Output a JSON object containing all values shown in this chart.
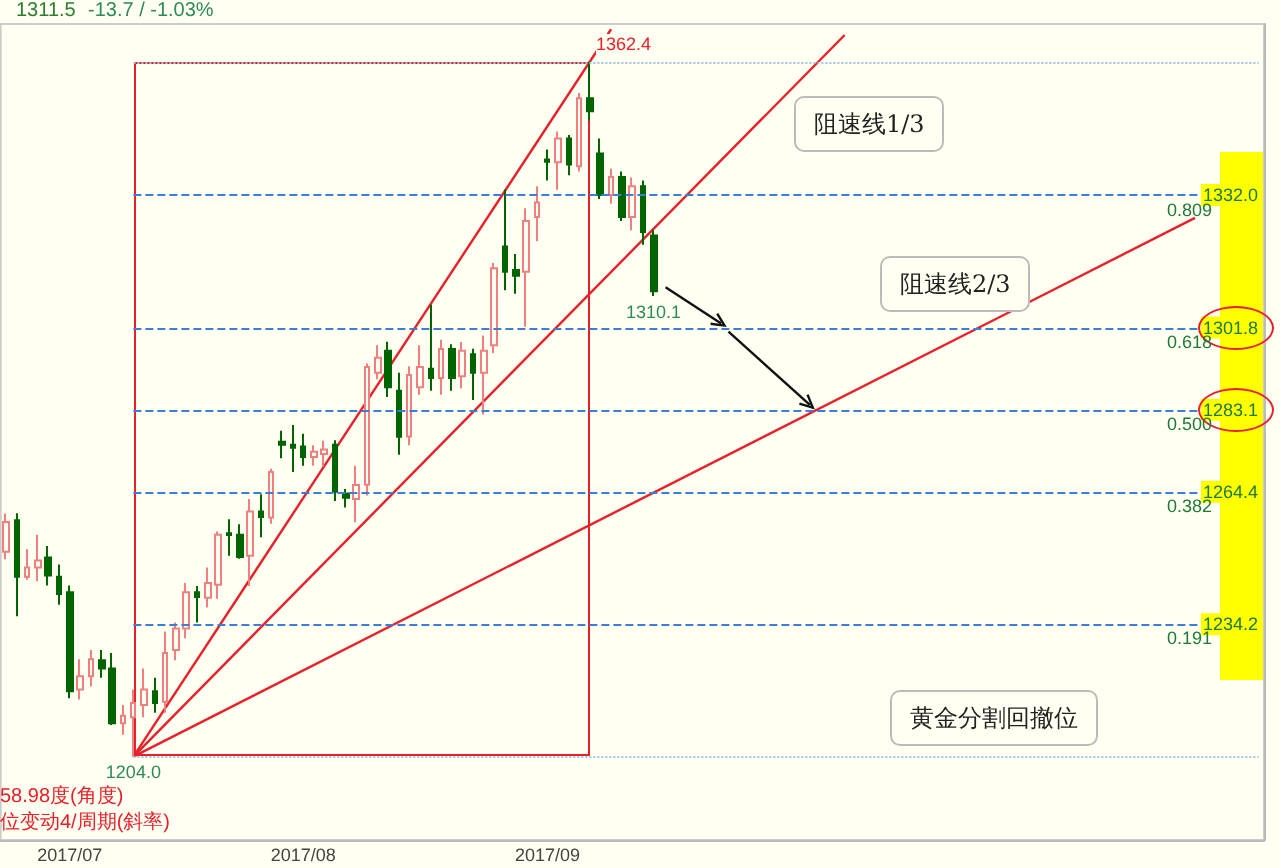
{
  "chart_data": {
    "type": "candlestick",
    "categories": [
      null,
      null,
      null,
      null,
      null,
      null,
      "2017/07",
      null,
      null,
      null,
      null,
      null,
      null,
      null,
      null,
      null,
      null,
      null,
      null,
      null,
      null,
      null,
      null,
      null,
      null,
      null,
      null,
      null,
      "2017/08",
      null,
      null,
      null,
      null,
      null,
      null,
      null,
      null,
      null,
      null,
      null,
      null,
      null,
      null,
      null,
      null,
      null,
      null,
      null,
      null,
      null,
      null,
      "2017/09",
      null,
      null,
      null,
      null,
      null,
      null,
      null,
      null,
      null,
      null,
      null,
      null,
      null,
      null,
      null,
      null,
      null,
      null,
      null,
      null,
      null,
      null,
      null,
      null,
      null,
      null,
      null,
      null,
      null,
      null,
      null,
      null,
      null,
      null,
      null,
      null,
      null,
      null,
      null,
      null,
      null,
      null,
      null,
      null,
      null,
      null,
      null,
      null,
      null,
      null,
      null,
      null,
      null,
      null,
      null,
      null,
      null,
      null,
      null,
      null,
      null,
      null,
      null,
      null,
      null,
      null,
      null
    ],
    "ohlc": [
      [
        1250.7,
        1259.4,
        1249.0,
        1257.5
      ],
      [
        1257.9,
        1259.5,
        1236.0,
        1245.0
      ],
      [
        1245.0,
        1251.3,
        1244.3,
        1247.1
      ],
      [
        1247.1,
        1254.6,
        1244.0,
        1248.7
      ],
      [
        1249.4,
        1252.0,
        1243.0,
        1245.3
      ],
      [
        1245.0,
        1247.8,
        1238.6,
        1241.1
      ],
      [
        1241.5,
        1243.0,
        1217.3,
        1218.9
      ],
      [
        1219.3,
        1226.2,
        1217.0,
        1222.3
      ],
      [
        1222.3,
        1228.3,
        1220.0,
        1226.2
      ],
      [
        1226.0,
        1228.3,
        1222.0,
        1224.1
      ],
      [
        1224.1,
        1227.6,
        1211.2,
        1211.6
      ],
      [
        1211.6,
        1215.8,
        1209.0,
        1213.3
      ],
      [
        1213.0,
        1219.3,
        1204.0,
        1216.2
      ],
      [
        1215.8,
        1224.1,
        1213.0,
        1219.3
      ],
      [
        1218.9,
        1222.0,
        1214.0,
        1216.2
      ],
      [
        1216.5,
        1232.5,
        1214.0,
        1227.6
      ],
      [
        1228.3,
        1234.6,
        1226.0,
        1233.2
      ],
      [
        1233.2,
        1243.6,
        1231.0,
        1241.5
      ],
      [
        1241.5,
        1242.9,
        1234.6,
        1240.4
      ],
      [
        1240.2,
        1247.1,
        1238.0,
        1243.6
      ],
      [
        1243.2,
        1255.3,
        1240.0,
        1254.6
      ],
      [
        1254.9,
        1258.1,
        1249.8,
        1254.5
      ],
      [
        1254.6,
        1257.0,
        1249.1,
        1249.5
      ],
      [
        1249.8,
        1262.7,
        1242.9,
        1259.9
      ],
      [
        1259.9,
        1263.8,
        1254.0,
        1258.6
      ],
      [
        1258.5,
        1269.6,
        1257.1,
        1268.9
      ],
      [
        1275.8,
        1278.3,
        1272.0,
        1275.1
      ],
      [
        1275.1,
        1279.6,
        1268.9,
        1274.4
      ],
      [
        1274.7,
        1277.6,
        1270.3,
        1272.3
      ],
      [
        1272.3,
        1275.0,
        1270.3,
        1273.5
      ],
      [
        1273.0,
        1276.0,
        1270.0,
        1274.0
      ],
      [
        1275.1,
        1276.1,
        1262.3,
        1264.4
      ],
      [
        1264.0,
        1265.0,
        1260.8,
        1263.0
      ],
      [
        1262.7,
        1270.3,
        1257.4,
        1265.9
      ],
      [
        1266.0,
        1293.6,
        1263.5,
        1292.8
      ],
      [
        1291.5,
        1297.8,
        1290.0,
        1294.9
      ],
      [
        1296.5,
        1298.6,
        1286.0,
        1288.2
      ],
      [
        1287.4,
        1291.5,
        1272.8,
        1276.9
      ],
      [
        1277.0,
        1293.0,
        1275.0,
        1291.0
      ],
      [
        1288.2,
        1297.8,
        1286.5,
        1292.8
      ],
      [
        1292.4,
        1307.0,
        1287.4,
        1290.3
      ],
      [
        1290.3,
        1299.0,
        1286.5,
        1296.9
      ],
      [
        1296.9,
        1298.0,
        1287.4,
        1290.3
      ],
      [
        1290.7,
        1298.5,
        1288.0,
        1296.5
      ],
      [
        1295.7,
        1297.0,
        1285.3,
        1291.5
      ],
      [
        1291.5,
        1300.0,
        1282.0,
        1296.5
      ],
      [
        1297.8,
        1316.5,
        1296.0,
        1315.3
      ],
      [
        1320.3,
        1333.2,
        1310.3,
        1314.5
      ],
      [
        1314.9,
        1318.6,
        1309.5,
        1313.6
      ],
      [
        1314.5,
        1329.0,
        1302.0,
        1326.1
      ],
      [
        1327.0,
        1334.0,
        1321.5,
        1330.3
      ],
      [
        1340.1,
        1342.4,
        1335.3,
        1339.6
      ],
      [
        1339.5,
        1346.5,
        1333.2,
        1344.9
      ],
      [
        1344.9,
        1345.7,
        1336.5,
        1339.0
      ],
      [
        1338.6,
        1355.3,
        1337.4,
        1354.1
      ],
      [
        1354.1,
        1362.4,
        1349.0,
        1351.1
      ],
      [
        1341.5,
        1344.9,
        1331.1,
        1332.0
      ],
      [
        1332.0,
        1338.0,
        1330.0,
        1336.1
      ],
      [
        1336.1,
        1337.4,
        1326.1,
        1327.0
      ],
      [
        1327.0,
        1336.0,
        1324.0,
        1334.0
      ],
      [
        1334.0,
        1335.3,
        1320.7,
        1323.6
      ],
      [
        1322.8,
        1324.0,
        1309.0,
        1310.1
      ],
      null,
      null,
      null,
      null,
      null,
      null,
      null,
      null,
      null,
      null,
      null,
      null,
      null,
      null,
      null,
      null,
      null,
      null,
      null,
      null,
      null,
      null,
      null,
      null,
      null,
      null,
      null,
      null,
      null,
      null,
      null,
      null,
      null,
      null,
      null,
      null,
      null,
      null,
      null,
      null,
      null,
      null,
      null,
      null,
      null,
      null,
      null,
      null,
      null,
      null,
      null,
      null,
      null,
      null,
      null,
      null,
      null
    ],
    "series": [
      {
        "type": "line",
        "color": "#e8202a",
        "values": [
          null,
          null,
          null,
          null,
          null,
          null,
          null,
          null,
          null,
          null,
          null,
          null,
          1204,
          null,
          null,
          null,
          null,
          null,
          null,
          null,
          null,
          null,
          null,
          null,
          null,
          null,
          null,
          null,
          null,
          null,
          null,
          null,
          null,
          null,
          null,
          null,
          null,
          null,
          null,
          null,
          null,
          null,
          null,
          null,
          null,
          null,
          null,
          null,
          null,
          null,
          null,
          null,
          null,
          null,
          null,
          null,
          null,
          1369.8,
          null,
          null,
          null,
          null,
          null,
          null,
          null,
          null,
          null,
          null,
          null,
          null,
          null,
          null,
          null,
          null,
          null,
          null,
          null,
          null,
          null,
          null,
          null,
          null,
          null,
          null,
          null,
          null,
          null,
          null,
          null,
          null,
          null,
          null,
          null,
          null,
          null,
          null,
          null,
          null,
          null,
          null,
          null,
          null,
          null,
          null,
          null,
          null,
          null,
          null,
          null,
          null,
          null,
          null,
          null,
          null,
          null,
          null,
          null,
          null,
          null
        ]
      },
      {
        "type": "line",
        "color": "#e8202a",
        "values": [
          null,
          null,
          null,
          null,
          null,
          null,
          null,
          null,
          null,
          null,
          null,
          null,
          1204,
          null,
          null,
          null,
          null,
          null,
          null,
          null,
          null,
          null,
          null,
          null,
          null,
          null,
          null,
          null,
          null,
          null,
          null,
          null,
          null,
          null,
          null,
          null,
          null,
          null,
          null,
          null,
          null,
          null,
          null,
          null,
          null,
          null,
          null,
          null,
          null,
          null,
          null,
          null,
          null,
          null,
          null,
          null,
          null,
          null,
          null,
          null,
          null,
          null,
          null,
          null,
          null,
          null,
          null,
          null,
          null,
          null,
          null,
          null,
          null,
          null,
          null,
          null,
          null,
          null,
          null,
          1368.5,
          null,
          null,
          null,
          null,
          null,
          null,
          null,
          null,
          null,
          null,
          null,
          null,
          null,
          null,
          null,
          null,
          null,
          null,
          null,
          null,
          null,
          null,
          null,
          null,
          null,
          null,
          null,
          null,
          null,
          null,
          null,
          null,
          null,
          null,
          null,
          null,
          null,
          null,
          null
        ]
      },
      {
        "type": "line",
        "color": "#e8202a",
        "values": [
          null,
          null,
          null,
          null,
          null,
          null,
          null,
          null,
          null,
          null,
          null,
          null,
          1204,
          null,
          null,
          null,
          null,
          null,
          null,
          null,
          null,
          null,
          null,
          null,
          null,
          null,
          null,
          null,
          null,
          null,
          null,
          null,
          null,
          null,
          null,
          null,
          null,
          null,
          null,
          null,
          null,
          null,
          null,
          null,
          null,
          null,
          null,
          null,
          null,
          null,
          null,
          null,
          null,
          null,
          null,
          null,
          null,
          null,
          null,
          null,
          null,
          null,
          null,
          null,
          null,
          null,
          null,
          null,
          null,
          null,
          null,
          null,
          null,
          null,
          null,
          null,
          null,
          null,
          null,
          null,
          null,
          null,
          null,
          null,
          null,
          null,
          null,
          null,
          null,
          null,
          null,
          null,
          null,
          null,
          null,
          null,
          null,
          null,
          null,
          null,
          null,
          null,
          null,
          null,
          null,
          null,
          null,
          null,
          null,
          null,
          null,
          null,
          1326.8,
          null,
          null,
          null,
          null,
          null,
          null
        ]
      }
    ],
    "ylim": [
      1185,
      1371
    ],
    "yticks": [
      1234.2,
      1264.4,
      1283.1,
      1301.8,
      {
        "value": 1332,
        "label": "1332.0"
      }
    ],
    "ref_lines": [
      {
        "axis": "y",
        "value": 1362.4,
        "color": "#9ec5e8",
        "line_style": "dotted"
      },
      {
        "axis": "y",
        "value": 1204.0,
        "color": "#9ec5e8",
        "line_style": "dotted"
      },
      {
        "axis": "y",
        "value": 1332.0,
        "color": "#3a7fd5",
        "line_style": "dashed"
      },
      {
        "axis": "y",
        "value": 1301.8,
        "color": "#3a7fd5",
        "line_style": "dashed"
      },
      {
        "axis": "y",
        "value": 1283.1,
        "color": "#3a7fd5",
        "line_style": "dashed"
      },
      {
        "axis": "y",
        "value": 1264.4,
        "color": "#3a7fd5",
        "line_style": "dashed"
      },
      {
        "axis": "y",
        "value": 1234.2,
        "color": "#3a7fd5",
        "line_style": "dashed"
      }
    ],
    "annotations": [
      "1311.5",
      "-13.7 / -1.03%",
      "58.98度(角度)",
      "位变动4/周期(斜率)",
      "阻速线1/3",
      "阻速线2/3",
      "黄金分割回撤位",
      {
        "text": "0.809",
        "y": 1332.0
      },
      {
        "text": "0.618",
        "y": 1301.8
      },
      {
        "text": "0.500",
        "y": 1283.1
      },
      {
        "text": "0.382",
        "y": 1264.4
      },
      {
        "text": "0.191",
        "y": 1234.2
      },
      {
        "text": "1362.4",
        "y": 1362.4
      },
      {
        "text": "1204.0",
        "y": 1204.0
      },
      {
        "text": "1310.1",
        "y": 1310.1
      }
    ]
  }
}
